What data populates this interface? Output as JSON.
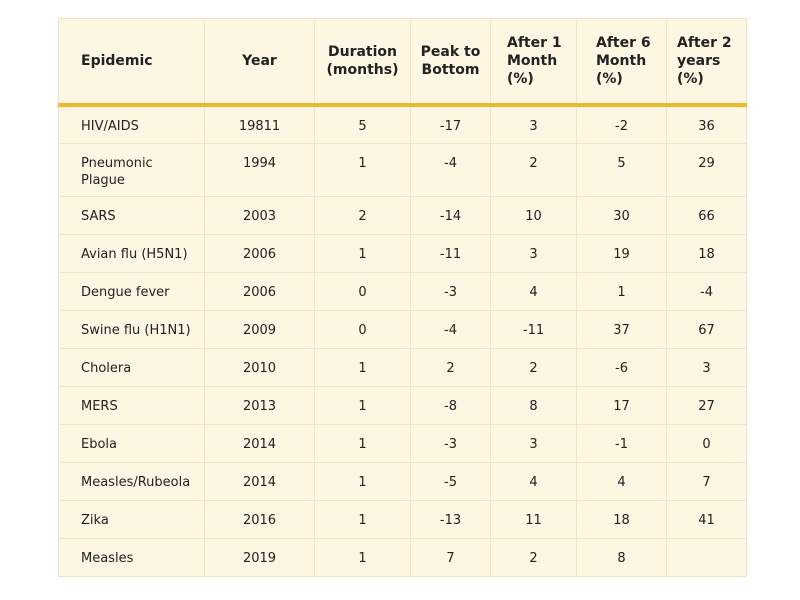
{
  "table": {
    "headers": [
      "Epidemic",
      "Year",
      "Duration (months)",
      "Peak to Bottom",
      "After 1 Month (%)",
      "After 6 Month (%)",
      "After 2 years (%)"
    ],
    "rows": [
      [
        "HIV/AIDS",
        "19811",
        5,
        -17,
        3,
        -2,
        36
      ],
      [
        "Pneumonic Plague",
        "1994",
        1,
        -4,
        2,
        5,
        29
      ],
      [
        "SARS",
        "2003",
        2,
        -14,
        10,
        30,
        66
      ],
      [
        "Avian flu (H5N1)",
        "2006",
        1,
        -11,
        3,
        19,
        18
      ],
      [
        "Dengue fever",
        "2006",
        0,
        -3,
        4,
        1,
        -4
      ],
      [
        "Swine flu (H1N1)",
        "2009",
        0,
        -4,
        -11,
        37,
        67
      ],
      [
        "Cholera",
        "2010",
        1,
        2,
        2,
        -6,
        3
      ],
      [
        "MERS",
        "2013",
        1,
        -8,
        8,
        17,
        27
      ],
      [
        "Ebola",
        "2014",
        1,
        -3,
        3,
        -1,
        0
      ],
      [
        "Measles/Rubeola",
        "2014",
        1,
        -5,
        4,
        4,
        7
      ],
      [
        "Zika",
        "2016",
        1,
        -13,
        11,
        18,
        41
      ],
      [
        "Measles",
        "2019",
        1,
        7,
        2,
        8,
        null
      ]
    ]
  }
}
